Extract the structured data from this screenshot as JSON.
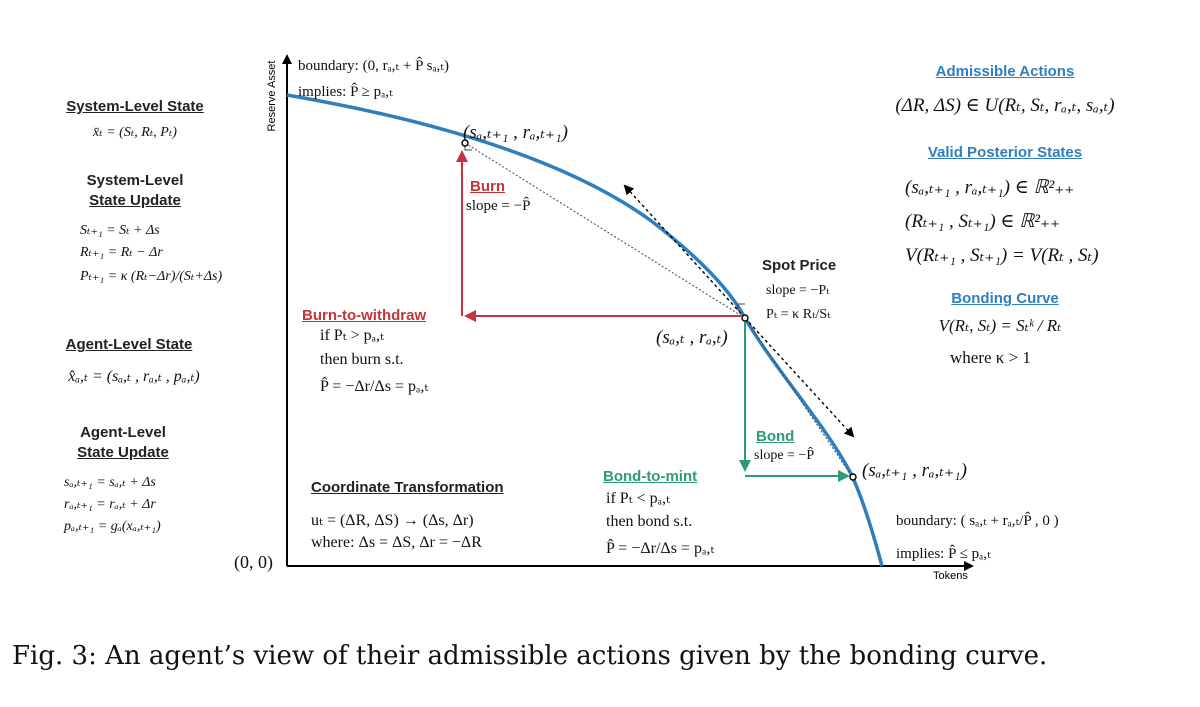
{
  "axes": {
    "y_label": "Reserve Asset",
    "x_label": "Tokens",
    "origin": "(0, 0)"
  },
  "left_panel": {
    "system_state": {
      "title": "System-Level State",
      "eq": "x̄ₜ = (Sₜ, Rₜ, Pₜ)"
    },
    "system_update": {
      "title_line1": "System-Level",
      "title_line2": "State Update",
      "eqs": [
        "Sₜ₊₁ = Sₜ + Δs",
        "Rₜ₊₁ = Rₜ − Δr",
        "Pₜ₊₁ = κ (Rₜ−Δr)/(Sₜ+Δs)"
      ]
    },
    "agent_state": {
      "title": "Agent-Level State",
      "eq": "x̂ₐ,ₜ = (sₐ,ₜ , rₐ,ₜ , pₐ,ₜ)"
    },
    "agent_update": {
      "title_line1": "Agent-Level",
      "title_line2": "State Update",
      "eqs": [
        "sₐ,ₜ₊₁ = sₐ,ₜ + Δs",
        "rₐ,ₜ₊₁ = rₐ,ₜ + Δr",
        "pₐ,ₜ₊₁ = gₐ(xₐ,ₜ₊₁)"
      ]
    }
  },
  "top_boundary": {
    "line1": "boundary:  (0, rₐ,ₜ + P̂ sₐ,ₜ)",
    "line2": "implies: P̂ ≥ pₐ,ₜ"
  },
  "point_upper": "(sₐ,ₜ₊₁ , rₐ,ₜ₊₁)",
  "point_current": "(sₐ,ₜ , rₐ,ₜ)",
  "point_lower": "(sₐ,ₜ₊₁ , rₐ,ₜ₊₁)",
  "burn": {
    "title": "Burn",
    "slope": "slope = −P̂"
  },
  "burn_withdraw": {
    "title": "Burn-to-withdraw",
    "line1": "if Pₜ > pₐ,ₜ",
    "line2": "then burn s.t.",
    "line3": "P̂ = −Δr/Δs = pₐ,ₜ"
  },
  "spot_price": {
    "title": "Spot Price",
    "line1": "slope = −Pₜ",
    "line2": "Pₜ = κ Rₜ/Sₜ"
  },
  "bond": {
    "title": "Bond",
    "slope": "slope = −P̂"
  },
  "bond_mint": {
    "title": "Bond-to-mint",
    "line1": "if Pₜ < pₐ,ₜ",
    "line2": "then bond s.t.",
    "line3": "P̂ = −Δr/Δs = pₐ,ₜ"
  },
  "coord_transform": {
    "title": "Coordinate Transformation",
    "line1": "uₜ = (ΔR, ΔS) → (Δs, Δr)",
    "line2": "where: Δs = ΔS, Δr = −ΔR"
  },
  "bottom_boundary": {
    "line1": "boundary:  ( sₐ,ₜ + rₐ,ₜ/P̂ , 0 )",
    "line2": "implies: P̂ ≤ pₐ,ₜ"
  },
  "right_panel": {
    "admissible": {
      "title": "Admissible Actions",
      "eq": "(ΔR, ΔS) ∈ U(Rₜ, Sₜ, rₐ,ₜ, sₐ,ₜ)"
    },
    "posterior": {
      "title": "Valid Posterior States",
      "eqs": [
        "(sₐ,ₜ₊₁ , rₐ,ₜ₊₁) ∈ ℝ²₊₊",
        "(Rₜ₊₁ , Sₜ₊₁) ∈ ℝ²₊₊",
        "V(Rₜ₊₁ , Sₜ₊₁) = V(Rₜ , Sₜ)"
      ]
    },
    "bonding_curve": {
      "title": "Bonding Curve",
      "eq": "V(Rₜ, Sₜ) = Sₜᵏ / Rₜ",
      "cond": "where κ > 1"
    }
  },
  "caption": "Fig. 3: An agent’s view of their admissible actions given by the bonding curve.",
  "colors": {
    "curve": "#2f7fbf",
    "burn": "#c4343a",
    "bond": "#2e9a7a",
    "axis": "#000000"
  }
}
